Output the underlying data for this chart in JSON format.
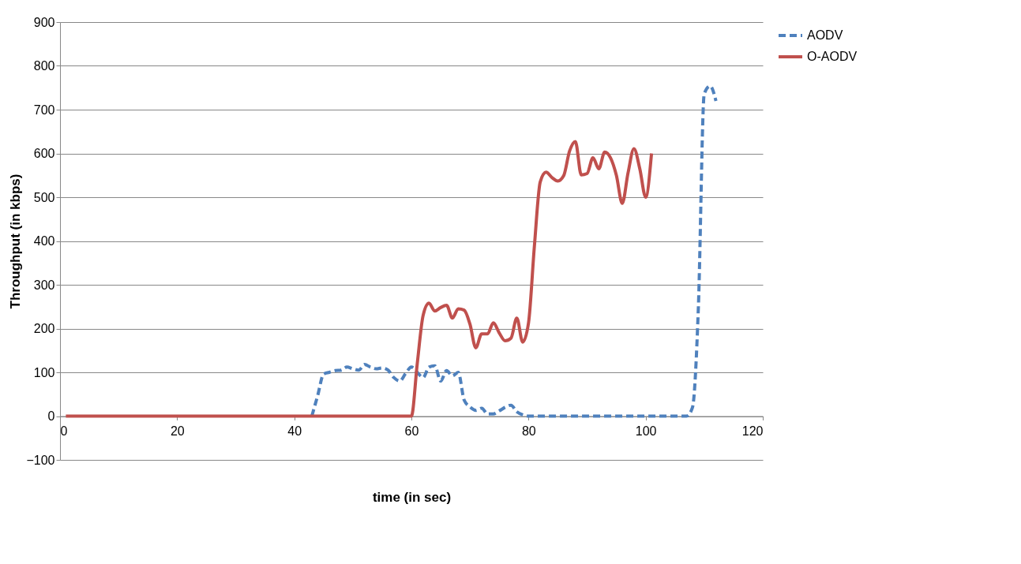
{
  "chart_data": {
    "type": "line",
    "xlabel": "time (in sec)",
    "ylabel": "Throughput (in kbps)",
    "xlim": [
      0,
      120
    ],
    "xticks": [
      0,
      20,
      40,
      60,
      80,
      100,
      120
    ],
    "ylim": [
      -100,
      900
    ],
    "yticks": [
      -100,
      0,
      100,
      200,
      300,
      400,
      500,
      600,
      700,
      800,
      900
    ],
    "grid": "y",
    "legend": "right",
    "marker": "none",
    "series": [
      {
        "name": "AODV",
        "color": "#4f81bd",
        "line_style": "dashed",
        "x": [
          43,
          44,
          45,
          46,
          47,
          48,
          49,
          50,
          51,
          52,
          53,
          54,
          55,
          56,
          57,
          58,
          59,
          60,
          61,
          62,
          63,
          64,
          65,
          66,
          67,
          68,
          69,
          70,
          71,
          72,
          73,
          74,
          75,
          76,
          77,
          78,
          79,
          80,
          90,
          100,
          107,
          108,
          109,
          110,
          111,
          112
        ],
        "values": [
          0,
          47,
          96,
          100,
          104,
          105,
          112,
          108,
          105,
          118,
          112,
          108,
          110,
          105,
          88,
          80,
          97,
          112,
          100,
          88,
          112,
          115,
          80,
          104,
          92,
          100,
          37,
          21,
          13,
          18,
          5,
          5,
          12,
          20,
          25,
          10,
          3,
          0,
          0,
          0,
          0,
          20,
          248,
          736,
          754,
          720
        ]
      },
      {
        "name": "O-AODV",
        "color": "#c0504d",
        "line_style": "solid",
        "x": [
          1,
          10,
          20,
          30,
          40,
          50,
          60,
          61,
          62,
          63,
          64,
          65,
          66,
          67,
          68,
          69,
          70,
          71,
          72,
          73,
          74,
          75,
          76,
          77,
          78,
          79,
          80,
          81,
          82,
          83,
          84,
          85,
          86,
          87,
          88,
          89,
          90,
          91,
          92,
          93,
          94,
          95,
          96,
          97,
          98,
          99,
          100,
          101
        ],
        "values": [
          0,
          0,
          0,
          0,
          0,
          0,
          0,
          120,
          230,
          258,
          240,
          248,
          253,
          224,
          245,
          242,
          210,
          156,
          188,
          188,
          213,
          190,
          172,
          178,
          224,
          169,
          213,
          388,
          535,
          557,
          545,
          537,
          549,
          605,
          627,
          551,
          554,
          590,
          565,
          603,
          590,
          550,
          486,
          556,
          611,
          565,
          500,
          600
        ]
      }
    ]
  }
}
